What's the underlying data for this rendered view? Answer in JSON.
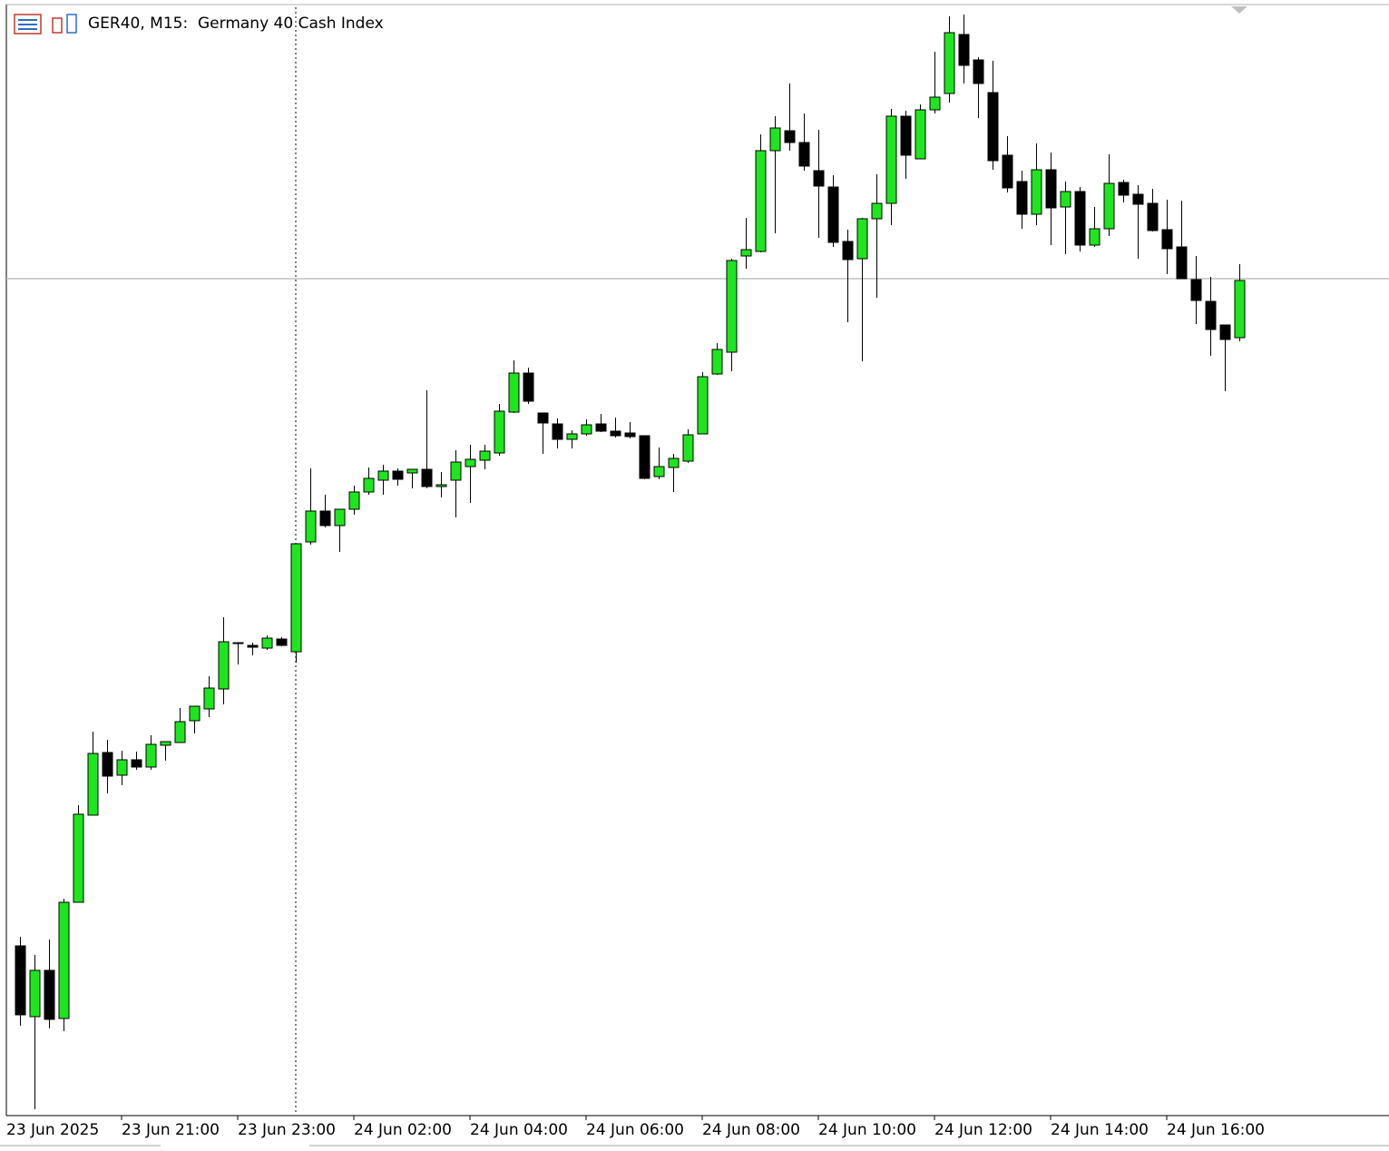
{
  "chart_data": {
    "type": "candlestick",
    "title": "GER40, M15:  Germany 40 Cash Index",
    "categories": [
      "23 Jun 2025",
      null,
      null,
      null,
      null,
      null,
      null,
      "23 Jun 21:00",
      null,
      null,
      null,
      null,
      null,
      null,
      null,
      "23 Jun 23:00",
      null,
      null,
      null,
      null,
      null,
      null,
      null,
      "24 Jun 02:00",
      null,
      null,
      null,
      null,
      null,
      null,
      null,
      "24 Jun 04:00",
      null,
      null,
      null,
      null,
      null,
      null,
      null,
      "24 Jun 06:00",
      null,
      null,
      null,
      null,
      null,
      null,
      null,
      "24 Jun 08:00",
      null,
      null,
      null,
      null,
      null,
      null,
      null,
      "24 Jun 10:00",
      null,
      null,
      null,
      null,
      null,
      null,
      null,
      "24 Jun 12:00",
      null,
      null,
      null,
      null,
      null,
      null,
      null,
      "24 Jun 14:00",
      null,
      null,
      null,
      null,
      null,
      null,
      null,
      "24 Jun 16:00",
      null,
      null,
      null,
      null,
      null
    ],
    "open": [
      23193,
      23154,
      23179.5,
      23153,
      23217,
      23265,
      23299.5,
      23287,
      23295.5,
      23291.5,
      23303.5,
      23305,
      23317,
      23323.5,
      23334.5,
      23359.5,
      23358.5,
      23357,
      23362,
      23355,
      23415.5,
      23432.5,
      23424.5,
      23433.5,
      23443,
      23449.5,
      23454.5,
      23453.5,
      23455.5,
      23446,
      23449.5,
      23457,
      23460.5,
      23464.5,
      23487,
      23508.5,
      23486.5,
      23480.5,
      23472,
      23475,
      23480.5,
      23476.5,
      23475.5,
      23474,
      23451.5,
      23456.5,
      23460,
      23475,
      23508,
      23520,
      23573,
      23575.5,
      23631,
      23642,
      23635.5,
      23620,
      23611,
      23581,
      23571.5,
      23593.5,
      23602,
      23650,
      23626.5,
      23653.5,
      23662.5,
      23695,
      23681,
      23663,
      23628.5,
      23614,
      23596,
      23620.5,
      23600,
      23608.5,
      23579,
      23588,
      23613.5,
      23607,
      23602,
      23587.5,
      23578,
      23560,
      23548,
      23535,
      23528
    ],
    "high": [
      23198,
      23188,
      23196.5,
      23219,
      23270.5,
      23311,
      23306.5,
      23300.5,
      23300,
      23309,
      23305.5,
      23324,
      23325,
      23341.5,
      23374,
      23360,
      23360,
      23364,
      23363,
      23414.5,
      23456,
      23441.5,
      23433.5,
      23446.5,
      23456.5,
      23458,
      23456,
      23455.5,
      23499,
      23454,
      23466,
      23469,
      23469,
      23491.5,
      23515.5,
      23511.5,
      23486.5,
      23483.5,
      23477,
      23483,
      23486,
      23484,
      23481.5,
      23474,
      23467.5,
      23464,
      23477.5,
      23509,
      23525,
      23571.5,
      23594,
      23640,
      23650,
      23668,
      23651.5,
      23642.5,
      23617.5,
      23587.5,
      23594,
      23618,
      23654,
      23653,
      23656.5,
      23685.5,
      23705,
      23706,
      23682.5,
      23680.5,
      23639,
      23620,
      23635,
      23630,
      23614,
      23611,
      23600,
      23629,
      23615,
      23612,
      23610,
      23604,
      23603.5,
      23573,
      23561.5,
      23535,
      23568.5
    ],
    "low": [
      23149,
      23103,
      23147.5,
      23146,
      23217,
      23265,
      23277,
      23281.5,
      23290,
      23290,
      23295,
      23305,
      23310,
      23319,
      23326,
      23348,
      23353,
      23356,
      23358,
      23349,
      23414,
      23423.5,
      23410,
      23430.5,
      23441.5,
      23441.5,
      23446.5,
      23445,
      23445,
      23440,
      23429,
      23437,
      23455.5,
      23463,
      23486.5,
      23491.5,
      23464,
      23467,
      23467,
      23474,
      23476,
      23473,
      23472.5,
      23450,
      23450,
      23443,
      23459,
      23475,
      23507.5,
      23509.5,
      23566,
      23575,
      23585.5,
      23631,
      23620,
      23583,
      23578,
      23536.5,
      23515,
      23550,
      23590,
      23615.5,
      23626.5,
      23651.5,
      23657.5,
      23668,
      23649,
      23620.5,
      23608,
      23588,
      23590,
      23579,
      23574,
      23575.5,
      23578,
      23584,
      23602.5,
      23571.5,
      23586.5,
      23563,
      23560.5,
      23535.5,
      23518,
      23498.5,
      23526
    ],
    "close": [
      23155,
      23179.5,
      23152.5,
      23217,
      23265.5,
      23299,
      23286.5,
      23295.5,
      23291.5,
      23304,
      23305.5,
      23316.5,
      23325,
      23335,
      23360.5,
      23360,
      23357.5,
      23362.5,
      23358.5,
      23414.5,
      23432.5,
      23424.5,
      23433.5,
      23443,
      23450.5,
      23454.5,
      23450,
      23455.5,
      23446,
      23447,
      23459.5,
      23461,
      23465.5,
      23487.5,
      23508.5,
      23493,
      23481,
      23472,
      23475,
      23480,
      23476.5,
      23474,
      23473.5,
      23450.5,
      23457,
      23461.5,
      23474.5,
      23506.5,
      23521.5,
      23570.5,
      23576.5,
      23631,
      23643.5,
      23635.5,
      23622.5,
      23611.5,
      23580.5,
      23571,
      23593.5,
      23602,
      23650,
      23628.5,
      23653.5,
      23660.5,
      23696,
      23678,
      23668,
      23625.5,
      23610.5,
      23596,
      23620.5,
      23599.5,
      23608.5,
      23579,
      23588,
      23613,
      23606.5,
      23601.5,
      23587,
      23577,
      23560.5,
      23548.5,
      23532.5,
      23527,
      23559.5
    ],
    "up_color": "#1ee61e",
    "down_color": "#000000",
    "bid_line": 23560.5,
    "ylim": [
      23100,
      23710
    ]
  }
}
